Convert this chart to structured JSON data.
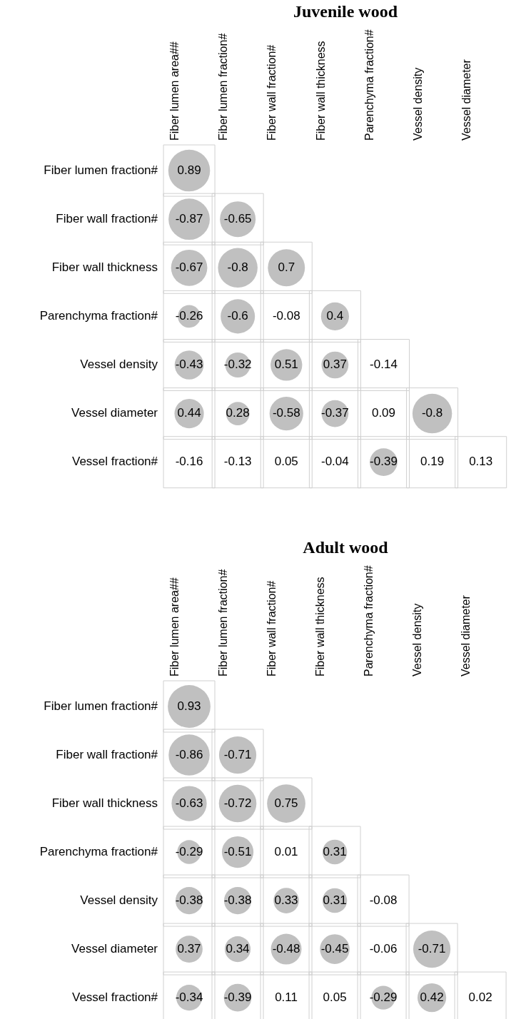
{
  "chart_data": [
    {
      "type": "heatmap",
      "title": "Juvenile wood",
      "color": "#c0c0c0",
      "data_labels": true,
      "categories": [
        "Fiber lumen area##",
        "Fiber lumen fraction#",
        "Fiber wall fraction#",
        "Fiber wall thickness",
        "Parenchyma fraction#",
        "Vessel density",
        "Vessel diameter"
      ],
      "y_categories": [
        "Fiber lumen fraction#",
        "Fiber wall fraction#",
        "Fiber wall thickness",
        "Parenchyma fraction#",
        "Vessel density",
        "Vessel diameter",
        "Vessel fraction#"
      ],
      "cells": [
        [
          0.89,
          null,
          null,
          null,
          null,
          null,
          null
        ],
        [
          -0.87,
          -0.65,
          null,
          null,
          null,
          null,
          null
        ],
        [
          -0.67,
          -0.8,
          0.7,
          null,
          null,
          null,
          null
        ],
        [
          -0.26,
          -0.6,
          -0.08,
          0.4,
          null,
          null,
          null
        ],
        [
          -0.43,
          -0.32,
          0.51,
          0.37,
          -0.14,
          null,
          null
        ],
        [
          0.44,
          0.28,
          -0.58,
          -0.37,
          0.09,
          -0.8,
          null
        ],
        [
          -0.16,
          -0.13,
          0.05,
          -0.04,
          -0.39,
          0.19,
          0.13
        ]
      ]
    },
    {
      "type": "heatmap",
      "title": "Adult wood",
      "color": "#c0c0c0",
      "data_labels": true,
      "categories": [
        "Fiber lumen area##",
        "Fiber lumen fraction#",
        "Fiber wall fraction#",
        "Fiber wall thickness",
        "Parenchyma fraction#",
        "Vessel density",
        "Vessel diameter"
      ],
      "y_categories": [
        "Fiber lumen fraction#",
        "Fiber wall fraction#",
        "Fiber wall thickness",
        "Parenchyma fraction#",
        "Vessel density",
        "Vessel diameter",
        "Vessel fraction#"
      ],
      "cells": [
        [
          0.93,
          null,
          null,
          null,
          null,
          null,
          null
        ],
        [
          -0.86,
          -0.71,
          null,
          null,
          null,
          null,
          null
        ],
        [
          -0.63,
          -0.72,
          0.75,
          null,
          null,
          null,
          null
        ],
        [
          -0.29,
          -0.51,
          0.01,
          0.31,
          null,
          null,
          null
        ],
        [
          -0.38,
          -0.38,
          0.33,
          0.31,
          -0.08,
          null,
          null
        ],
        [
          0.37,
          0.34,
          -0.48,
          -0.45,
          -0.06,
          -0.71,
          null
        ],
        [
          -0.34,
          -0.39,
          0.11,
          0.05,
          -0.29,
          0.42,
          0.02
        ]
      ]
    }
  ]
}
